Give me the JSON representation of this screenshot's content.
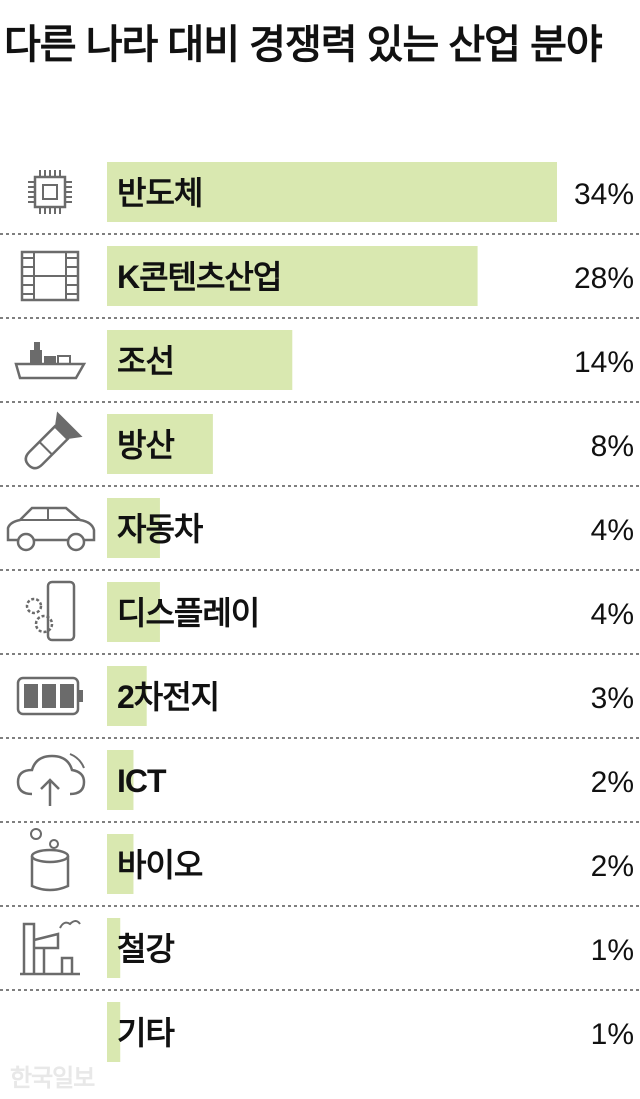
{
  "chart_data": {
    "type": "bar",
    "orientation": "horizontal",
    "title": "다른 나라 대비 경쟁력 있는 산업 분야",
    "categories": [
      "반도체",
      "K콘텐츠산업",
      "조선",
      "방산",
      "자동차",
      "디스플레이",
      "2차전지",
      "ICT",
      "바이오",
      "철강",
      "기타"
    ],
    "values": [
      34,
      28,
      14,
      8,
      4,
      4,
      3,
      2,
      2,
      1,
      1
    ],
    "value_labels": [
      "34%",
      "28%",
      "14%",
      "8%",
      "4%",
      "4%",
      "3%",
      "2%",
      "2%",
      "1%",
      "1%"
    ],
    "icons": [
      "chip-icon",
      "film-icon",
      "ship-icon",
      "missile-icon",
      "car-icon",
      "display-icon",
      "battery-icon",
      "cloud-icon",
      "bio-icon",
      "steel-icon",
      ""
    ],
    "unit": "%",
    "grid": false,
    "colors": {
      "bar": "#d9e8b0",
      "text": "#111111",
      "divider": "#555555",
      "icon": "#6b6b6b"
    }
  },
  "watermark": "한국일보"
}
